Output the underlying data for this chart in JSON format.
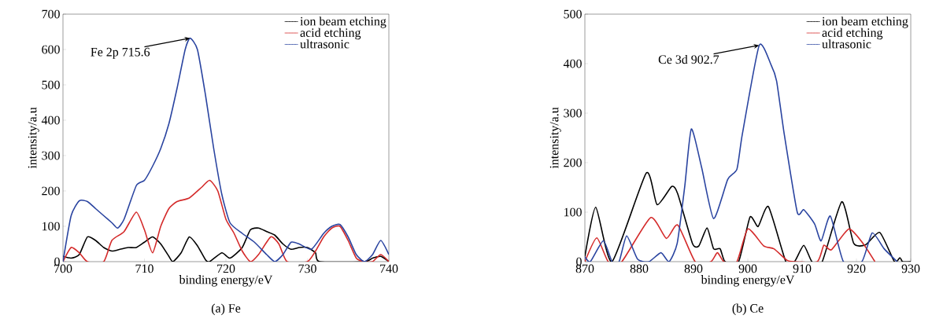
{
  "chart_data": [
    {
      "type": "line",
      "title": "(a) Fe",
      "xlabel": "binding energy/eV",
      "ylabel": "intensity/a.u",
      "xlim": [
        700,
        740
      ],
      "ylim": [
        0,
        700
      ],
      "xticks": [
        700,
        710,
        720,
        730,
        740
      ],
      "yticks": [
        0,
        100,
        200,
        300,
        400,
        500,
        600,
        700
      ],
      "legend": "top right",
      "grid": false,
      "marker": "none",
      "line_style": "solid",
      "annotations": [
        {
          "text": "Fe 2p 715.6",
          "x": 715.6,
          "y": 632
        }
      ],
      "series": [
        {
          "name": "ion beam etching",
          "color": "#000000",
          "x": [
            700,
            701,
            702,
            703,
            704,
            705,
            706,
            707,
            708,
            709,
            710,
            711,
            712,
            713,
            713.5,
            714.5,
            715.5,
            716.5,
            717.5,
            718,
            719.5,
            720.5,
            722,
            723,
            724,
            725,
            726,
            727,
            728,
            729,
            730,
            731,
            731.5,
            737,
            738,
            739,
            740
          ],
          "values": [
            15,
            10,
            20,
            70,
            60,
            40,
            30,
            35,
            40,
            40,
            55,
            70,
            50,
            15,
            0,
            25,
            70,
            45,
            5,
            0,
            25,
            10,
            40,
            90,
            95,
            85,
            75,
            50,
            35,
            40,
            40,
            25,
            0,
            0,
            10,
            15,
            0
          ]
        },
        {
          "name": "acid etching",
          "color": "#d42a2a",
          "x": [
            700,
            701,
            702,
            703,
            705,
            706,
            707.5,
            709,
            710,
            711,
            712,
            713,
            714,
            715.5,
            717,
            718,
            719,
            720,
            721,
            722,
            723,
            724,
            725.5,
            726.5,
            727.5,
            730,
            731,
            732,
            733,
            734,
            735,
            736,
            737,
            738,
            739,
            740
          ],
          "values": [
            0,
            40,
            25,
            0,
            0,
            60,
            85,
            140,
            90,
            25,
            100,
            150,
            170,
            180,
            210,
            230,
            200,
            120,
            80,
            30,
            0,
            20,
            70,
            50,
            0,
            0,
            30,
            70,
            95,
            100,
            60,
            10,
            0,
            0,
            20,
            0
          ]
        },
        {
          "name": "ultrasonic",
          "color": "#2a44a0",
          "x": [
            700,
            701,
            702,
            703,
            704,
            705,
            706,
            706.7,
            707.5,
            709,
            710,
            711,
            712,
            713,
            714,
            715,
            715.6,
            716.5,
            717.5,
            718.5,
            719.5,
            720.5,
            722,
            723.5,
            725,
            726,
            727,
            728,
            729,
            730.5,
            732,
            733,
            734,
            735,
            736,
            737,
            738,
            739,
            740
          ],
          "values": [
            0,
            130,
            172,
            170,
            150,
            130,
            110,
            95,
            120,
            215,
            230,
            270,
            320,
            390,
            490,
            600,
            632,
            600,
            470,
            320,
            190,
            110,
            80,
            55,
            20,
            0,
            20,
            55,
            50,
            35,
            80,
            100,
            105,
            70,
            20,
            0,
            20,
            60,
            20
          ]
        }
      ]
    },
    {
      "type": "line",
      "title": "(b) Ce",
      "xlabel": "binding energy/eV",
      "ylabel": "intensity/a.u",
      "xlim": [
        870,
        930
      ],
      "ylim": [
        0,
        500
      ],
      "xticks": [
        870,
        880,
        890,
        900,
        910,
        920,
        930
      ],
      "yticks": [
        0,
        100,
        200,
        300,
        400,
        500
      ],
      "legend": "top right",
      "grid": false,
      "marker": "none",
      "line_style": "solid",
      "annotations": [
        {
          "text": "Ce 3d 902.7",
          "x": 902.1,
          "y": 437
        }
      ],
      "series": [
        {
          "name": "ion beam etching",
          "color": "#000000",
          "x": [
            870,
            872,
            875,
            881.3,
            883.3,
            886,
            887.1,
            889.8,
            891,
            892.5,
            893.7,
            894.9,
            895.8,
            898.3,
            900.4,
            901.9,
            903.8,
            907,
            908.6,
            910.3,
            911.8,
            913.7,
            917.3,
            919.5,
            921.7,
            924.3,
            927,
            928,
            928.5,
            930
          ],
          "values": [
            10,
            110,
            0,
            179,
            115,
            152,
            137,
            37,
            32,
            68,
            26,
            26,
            0,
            0,
            90,
            71,
            111,
            0,
            0,
            33,
            0,
            0,
            121,
            37,
            34,
            59,
            0,
            8,
            0,
            0
          ]
        },
        {
          "name": "acid etching",
          "color": "#d42a2a",
          "x": [
            870,
            872.2,
            874.3,
            876.8,
            882.1,
            885,
            887.1,
            890.3,
            893.2,
            894.4,
            895.6,
            898,
            900,
            902.9,
            904.8,
            907.2,
            908.6,
            912.8,
            914,
            915.4,
            918.6,
            921.2,
            923.4
          ],
          "values": [
            0,
            48,
            0,
            0,
            89,
            47,
            74,
            0,
            0,
            18,
            0,
            0,
            66,
            32,
            26,
            3,
            0,
            0,
            33,
            24,
            66,
            37,
            0
          ]
        },
        {
          "name": "ultrasonic",
          "color": "#2a44a0",
          "x": [
            870,
            871,
            873.4,
            875,
            876.3,
            877.7,
            879.7,
            881.8,
            884,
            885.5,
            887,
            888.4,
            889.6,
            891.5,
            893.7,
            896.3,
            898,
            899,
            902.1,
            904.3,
            905.3,
            906.7,
            909.1,
            910.3,
            912.3,
            913.5,
            915.2,
            917.6,
            921,
            922.9,
            925.1,
            927.5
          ],
          "values": [
            10,
            0,
            42,
            0,
            0,
            52,
            5,
            0,
            18,
            0,
            37,
            153,
            268,
            190,
            87,
            166,
            187,
            258,
            437,
            397,
            365,
            258,
            100,
            105,
            76,
            42,
            92,
            0,
            0,
            58,
            26,
            0
          ]
        }
      ]
    }
  ]
}
